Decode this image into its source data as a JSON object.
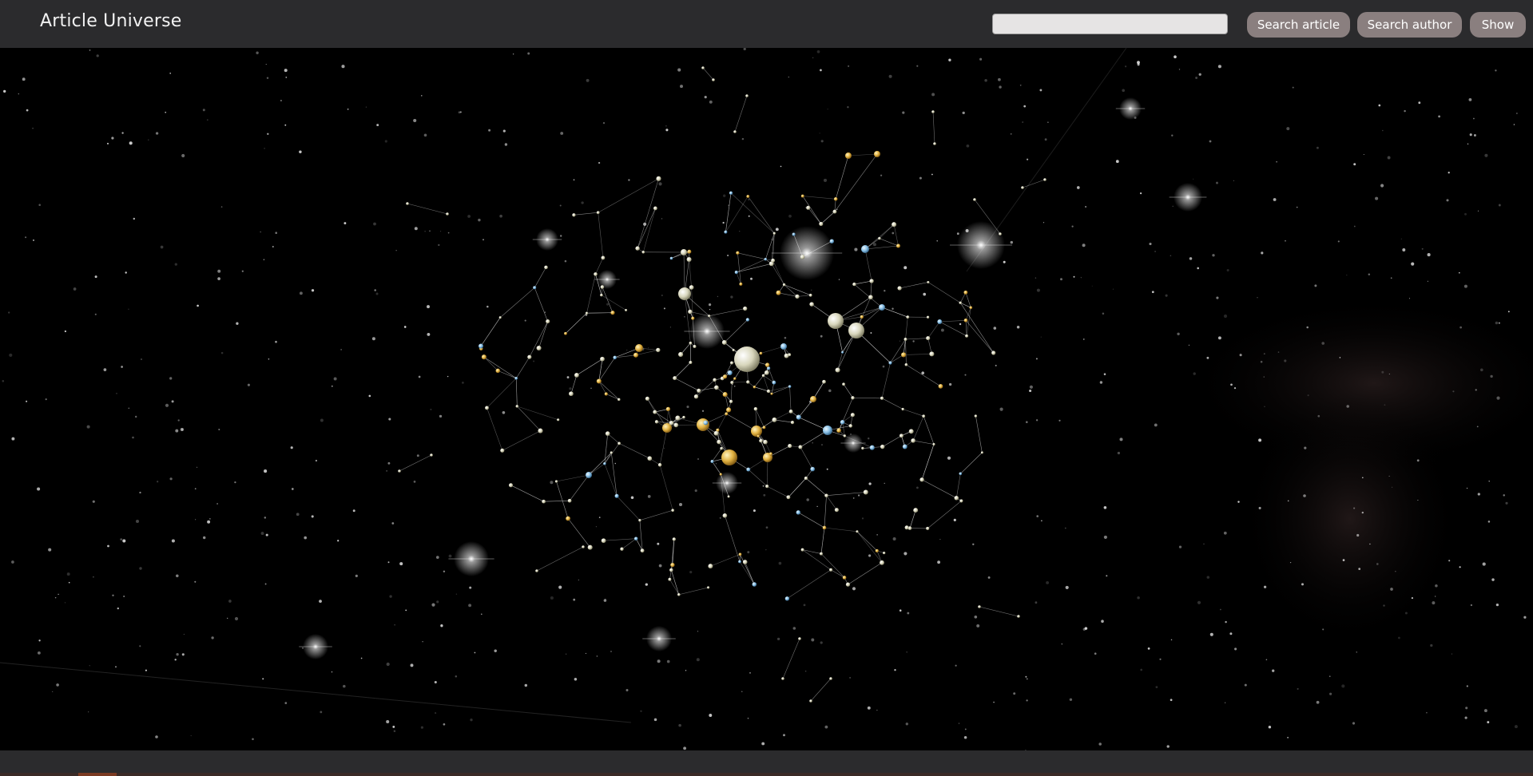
{
  "app": {
    "title": "Article Universe"
  },
  "search": {
    "placeholder": "",
    "value": ""
  },
  "buttons": {
    "search_article": "Search article",
    "search_author": "Search author",
    "show": "Show"
  },
  "colors": {
    "topbar": "#2b2b2d",
    "button": "#8a7f7f",
    "space": "#000000",
    "node_white": "#e8e6d0",
    "node_gold": "#e6b84a",
    "node_blue": "#8fc4e8",
    "edge": "#bfbfbf"
  },
  "icons": {
    "glow_star": "bright-star-icon",
    "node": "article-node-icon"
  }
}
